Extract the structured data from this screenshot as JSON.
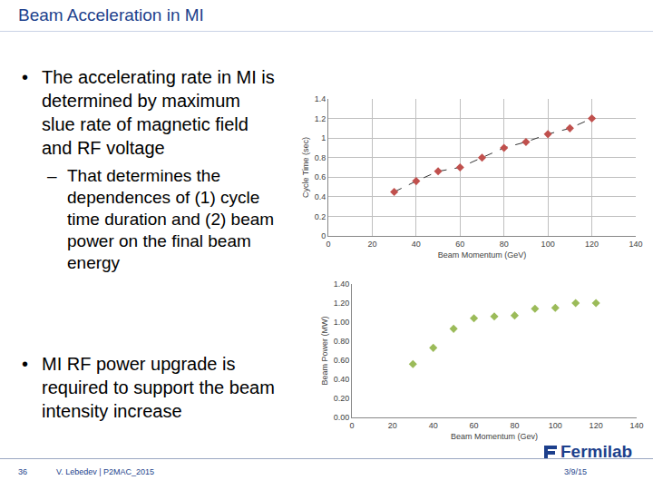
{
  "slide": {
    "title": "Beam Acceleration in MI",
    "bullets": [
      {
        "text": "The accelerating rate in MI is determined by maximum slue rate of magnetic field and RF voltage",
        "sub": [
          "That determines the dependences of (1) cycle time duration and (2) beam power on the final beam energy"
        ]
      },
      {
        "text": "MI RF power upgrade is required to support the beam intensity increase"
      }
    ],
    "footer": {
      "page": "36",
      "author": "V. Lebedev | P2MAC_2015",
      "logo": "Fermilab",
      "date": "3/9/15"
    }
  },
  "chart_data": [
    {
      "type": "scatter",
      "x_label": "Beam Momentum (GeV)",
      "y_label": "Cycle Time (sec)",
      "x": [
        30,
        40,
        50,
        60,
        70,
        80,
        90,
        100,
        110,
        120
      ],
      "values": [
        0.45,
        0.56,
        0.66,
        0.7,
        0.8,
        0.9,
        0.96,
        1.04,
        1.1,
        1.2
      ],
      "color": "#c0504d",
      "marker": "diamond",
      "line_style": "dashed",
      "xlim": [
        0,
        140
      ],
      "xticks": [
        0,
        20,
        40,
        60,
        80,
        100,
        120,
        140
      ],
      "ylim": [
        0,
        1.4
      ],
      "yticks": [
        0,
        0.2,
        0.4,
        0.6,
        0.8,
        1,
        1.2,
        1.4
      ],
      "grid": true
    },
    {
      "type": "scatter",
      "x_label": "Beam Momentum (Gev)",
      "y_label": "Beam Power (MW)",
      "x": [
        30,
        40,
        50,
        60,
        70,
        80,
        90,
        100,
        110,
        120
      ],
      "values": [
        0.56,
        0.73,
        0.93,
        1.04,
        1.06,
        1.07,
        1.14,
        1.15,
        1.2,
        1.2
      ],
      "color": "#9bbb59",
      "marker": "diamond",
      "xlim": [
        0,
        140
      ],
      "xticks": [
        0,
        20,
        40,
        60,
        80,
        100,
        120,
        140
      ],
      "ylim": [
        0,
        1.4
      ],
      "yticks": [
        {
          "value": 0,
          "label": "0.00"
        },
        {
          "value": 0.2,
          "label": "0.20"
        },
        {
          "value": 0.4,
          "label": "0.40"
        },
        {
          "value": 0.6,
          "label": "0.60"
        },
        {
          "value": 0.8,
          "label": "0.80"
        },
        {
          "value": 1,
          "label": "1.00"
        },
        {
          "value": 1.2,
          "label": "1.20"
        },
        {
          "value": 1.4,
          "label": "1.40"
        }
      ],
      "grid": false
    }
  ]
}
